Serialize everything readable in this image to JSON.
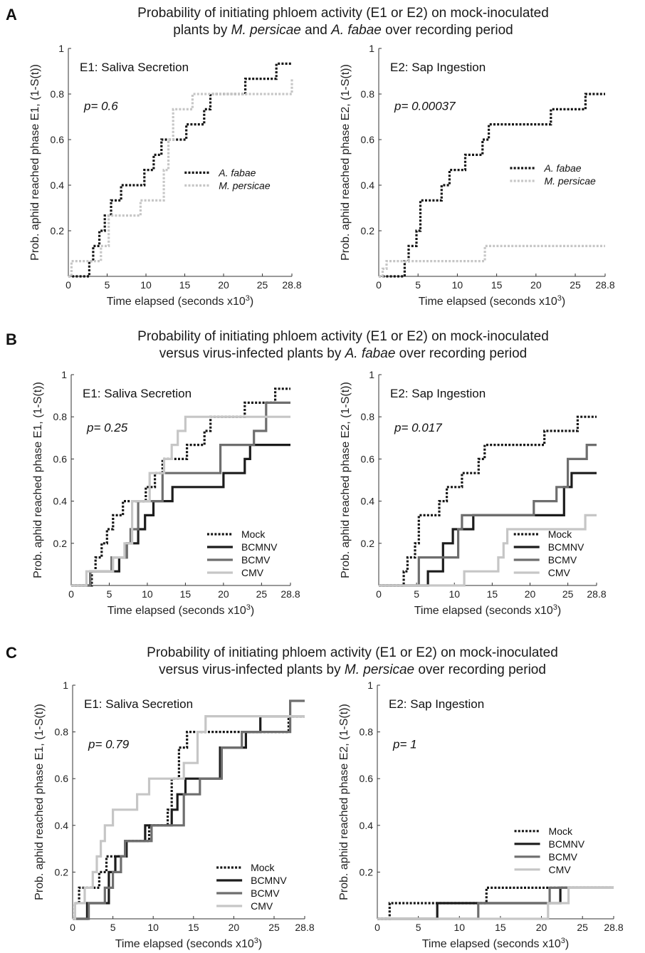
{
  "panels": [
    {
      "letter": "A",
      "title_line1": [
        {
          "t": "Probability of initiating phloem activity (E1 or E2) on mock-inoculated"
        }
      ],
      "title_line2": [
        {
          "t": "plants by "
        },
        {
          "t": "M. persicae",
          "i": true
        },
        {
          "t": " and "
        },
        {
          "t": "A. fabae",
          "i": true
        },
        {
          "t": " over recording period"
        }
      ]
    },
    {
      "letter": "B",
      "title_line1": [
        {
          "t": "Probability of initiating phloem activity (E1 or E2) on mock-inoculated"
        }
      ],
      "title_line2": [
        {
          "t": "versus virus-infected plants by "
        },
        {
          "t": "A. fabae",
          "i": true
        },
        {
          "t": " over recording period"
        }
      ]
    },
    {
      "letter": "C",
      "title_line1": [
        {
          "t": "Probability of initiating phloem activity (E1 or E2) on mock-inoculated"
        }
      ],
      "title_line2": [
        {
          "t": "versus virus-infected plants by "
        },
        {
          "t": "M. persicae",
          "i": true
        },
        {
          "t": " over recording period"
        }
      ]
    }
  ],
  "colors": {
    "mock": "#151515",
    "bcmnv": "#1c1c1c",
    "bcmv": "#6e6e6e",
    "cmv": "#c6c6c6",
    "mpersicae": "#c6c6c6",
    "afabae": "#151515"
  },
  "chart_data": [
    {
      "id": "A-E1",
      "type": "line",
      "step": true,
      "inner_title": "E1: Saliva Secretion",
      "pvalue": "p= 0.6",
      "xlabel": "Time elapsed (seconds x10",
      "xlabel_sup": "3",
      "xlabel_end": ")",
      "ylabel": "Prob. aphid reached phase E1, (1-S(t))",
      "xlim": [
        0,
        28.8
      ],
      "ylim": [
        0,
        1
      ],
      "xticks": [
        "0",
        "5",
        "10",
        "15",
        "20",
        "25",
        "28.8"
      ],
      "yticks": [
        "0.2",
        "0.4",
        "0.6",
        "0.8",
        "1"
      ],
      "legend": "middle-right",
      "series": [
        {
          "name": "A. fabae",
          "key": "afabae",
          "style": "dotted",
          "italic": true,
          "x": [
            2.2,
            2.7,
            3.2,
            4.0,
            4.7,
            5.5,
            6.8,
            9.8,
            11.0,
            12.0,
            15.2,
            17.5,
            18.3,
            22.8,
            26.8,
            28.8
          ],
          "y": [
            0,
            0.067,
            0.133,
            0.2,
            0.267,
            0.333,
            0.4,
            0.467,
            0.533,
            0.6,
            0.667,
            0.733,
            0.8,
            0.867,
            0.933,
            0.933
          ]
        },
        {
          "name": "M. persicae",
          "key": "mpersicae",
          "style": "dotted",
          "italic": true,
          "x": [
            0.4,
            4.2,
            5.2,
            9.3,
            12.3,
            12.9,
            13.5,
            16.0,
            28.8
          ],
          "y": [
            0.067,
            0.133,
            0.267,
            0.333,
            0.467,
            0.6,
            0.733,
            0.8,
            0.867
          ]
        }
      ]
    },
    {
      "id": "A-E2",
      "type": "line",
      "step": true,
      "inner_title": "E2: Sap Ingestion",
      "pvalue": "p= 0.00037",
      "xlabel": "Time elapsed (seconds x10",
      "xlabel_sup": "3",
      "xlabel_end": ")",
      "ylabel": "Prob. aphid reached phase E2, (1-S(t))",
      "xlim": [
        0,
        28.8
      ],
      "ylim": [
        0,
        1
      ],
      "xticks": [
        "0",
        "5",
        "10",
        "15",
        "20",
        "25",
        "28.8"
      ],
      "yticks": [
        "0.2",
        "0.4",
        "0.6",
        "0.8",
        "1"
      ],
      "legend": "top-right",
      "series": [
        {
          "name": "A. fabae",
          "key": "afabae",
          "style": "dotted",
          "italic": true,
          "x": [
            2.8,
            3.3,
            3.8,
            4.8,
            5.3,
            8.0,
            9.0,
            11.0,
            13.2,
            14.0,
            16.0,
            21.9,
            26.3,
            28.8
          ],
          "y": [
            0,
            0.067,
            0.133,
            0.2,
            0.333,
            0.4,
            0.467,
            0.533,
            0.6,
            0.667,
            0.667,
            0.733,
            0.8,
            0.8
          ]
        },
        {
          "name": "M. persicae",
          "key": "mpersicae",
          "style": "dotted",
          "italic": true,
          "x": [
            0.5,
            1.0,
            13.5,
            28.8
          ],
          "y": [
            0.033,
            0.067,
            0.133,
            0.133
          ]
        }
      ]
    },
    {
      "id": "B-E1",
      "type": "line",
      "step": true,
      "inner_title": "E1: Saliva Secretion",
      "pvalue": "p= 0.25",
      "xlabel": "Time elapsed (seconds x10",
      "xlabel_sup": "3",
      "xlabel_end": ")",
      "ylabel": "Prob. aphid reached phase E1, (1-S(t))",
      "xlim": [
        0,
        28.8
      ],
      "ylim": [
        0,
        1
      ],
      "xticks": [
        "0",
        "5",
        "10",
        "15",
        "20",
        "25",
        "28.8"
      ],
      "yticks": [
        "0.2",
        "0.4",
        "0.6",
        "0.8",
        "1"
      ],
      "legend": "bottom-right",
      "series": [
        {
          "name": "Mock",
          "key": "mock",
          "style": "dotted",
          "x": [
            2.2,
            2.7,
            3.2,
            4.0,
            4.7,
            5.5,
            6.8,
            9.8,
            11.0,
            12.0,
            15.2,
            17.5,
            18.3,
            22.8,
            26.8,
            28.8
          ],
          "y": [
            0,
            0.067,
            0.133,
            0.2,
            0.267,
            0.333,
            0.4,
            0.467,
            0.533,
            0.6,
            0.667,
            0.733,
            0.8,
            0.867,
            0.933,
            0.933
          ]
        },
        {
          "name": "BCMNV",
          "key": "bcmnv",
          "style": "solid",
          "x": [
            2.5,
            3.5,
            6.3,
            7.3,
            8.8,
            9.7,
            10.8,
            13.3,
            20.0,
            22.8,
            23.5,
            28.8
          ],
          "y": [
            0.067,
            0.067,
            0.133,
            0.2,
            0.267,
            0.333,
            0.4,
            0.467,
            0.533,
            0.6,
            0.667,
            0.667
          ]
        },
        {
          "name": "BCMV",
          "key": "bcmv",
          "style": "solid",
          "x": [
            2.5,
            5.3,
            7.3,
            7.8,
            8.8,
            12.0,
            19.6,
            24.0,
            25.6,
            28.8
          ],
          "y": [
            0.067,
            0.133,
            0.2,
            0.267,
            0.4,
            0.533,
            0.667,
            0.733,
            0.867,
            0.867
          ]
        },
        {
          "name": "CMV",
          "key": "cmv",
          "style": "solid",
          "x": [
            2.0,
            5.5,
            7.0,
            8.0,
            10.3,
            12.2,
            13.2,
            14.0,
            15.0,
            17.0,
            28.8
          ],
          "y": [
            0.067,
            0.133,
            0.2,
            0.4,
            0.533,
            0.6,
            0.667,
            0.733,
            0.8,
            0.8,
            0.8
          ]
        }
      ]
    },
    {
      "id": "B-E2",
      "type": "line",
      "step": true,
      "inner_title": "E2: Sap Ingestion",
      "pvalue": "p= 0.017",
      "xlabel": "Time elapsed (seconds x10",
      "xlabel_sup": "3",
      "xlabel_end": ")",
      "ylabel": "Prob. aphid reached phase E2, (1-S(t))",
      "xlim": [
        0,
        28.8
      ],
      "ylim": [
        0,
        1
      ],
      "xticks": [
        "0",
        "5",
        "10",
        "15",
        "20",
        "25",
        "28.8"
      ],
      "yticks": [
        "0.2",
        "0.4",
        "0.6",
        "0.8",
        "1"
      ],
      "legend": "bottom-right",
      "series": [
        {
          "name": "Mock",
          "key": "mock",
          "style": "dotted",
          "x": [
            2.8,
            3.3,
            3.8,
            4.8,
            5.3,
            8.0,
            9.0,
            11.0,
            13.2,
            14.0,
            16.0,
            21.9,
            26.3,
            28.8
          ],
          "y": [
            0,
            0.067,
            0.133,
            0.2,
            0.333,
            0.4,
            0.467,
            0.533,
            0.6,
            0.667,
            0.667,
            0.733,
            0.8,
            0.8
          ]
        },
        {
          "name": "BCMNV",
          "key": "bcmnv",
          "style": "solid",
          "x": [
            6.0,
            6.5,
            8.5,
            9.8,
            11.0,
            12.5,
            19.5,
            24.5,
            25.5,
            28.8
          ],
          "y": [
            0,
            0.067,
            0.2,
            0.267,
            0.267,
            0.333,
            0.333,
            0.467,
            0.533,
            0.533
          ]
        },
        {
          "name": "BCMV",
          "key": "bcmv",
          "style": "solid",
          "x": [
            4.8,
            5.3,
            9.3,
            10.5,
            11.0,
            20.5,
            23.5,
            25.0,
            27.5,
            28.8
          ],
          "y": [
            0,
            0.133,
            0.133,
            0.267,
            0.333,
            0.4,
            0.467,
            0.6,
            0.667,
            0.667
          ]
        },
        {
          "name": "CMV",
          "key": "cmv",
          "style": "solid",
          "x": [
            11.3,
            15.8,
            16.5,
            17.0,
            27.3,
            28.8
          ],
          "y": [
            0.067,
            0.133,
            0.2,
            0.267,
            0.333,
            0.333
          ]
        }
      ]
    },
    {
      "id": "C-E1",
      "type": "line",
      "step": true,
      "inner_title": "E1: Saliva Secretion",
      "pvalue": "p= 0.79",
      "xlabel": "Time elapsed (seconds x10",
      "xlabel_sup": "3",
      "xlabel_end": ")",
      "ylabel": "Prob. aphid reached phase E1, (1-S(t))",
      "xlim": [
        0,
        28.8
      ],
      "ylim": [
        0,
        1
      ],
      "xticks": [
        "0",
        "5",
        "10",
        "15",
        "20",
        "25",
        "28.8"
      ],
      "yticks": [
        "0.2",
        "0.4",
        "0.6",
        "0.8",
        "1"
      ],
      "legend": "bottom-right",
      "series": [
        {
          "name": "Mock",
          "key": "mock",
          "style": "dotted",
          "x": [
            0.3,
            0.8,
            3.3,
            4.2,
            6.5,
            9.5,
            11.8,
            12.3,
            13.2,
            14.2,
            17.5,
            26.8,
            28.8
          ],
          "y": [
            0.067,
            0.133,
            0.2,
            0.267,
            0.333,
            0.4,
            0.467,
            0.6,
            0.733,
            0.8,
            0.8,
            0.867,
            0.867
          ]
        },
        {
          "name": "BCMNV",
          "key": "bcmnv",
          "style": "solid",
          "x": [
            1.3,
            1.8,
            4.5,
            5.3,
            6.7,
            9.0,
            10.8,
            12.3,
            13.0,
            14.0,
            18.3,
            21.5,
            23.3,
            28.8
          ],
          "y": [
            0,
            0.067,
            0.2,
            0.267,
            0.333,
            0.4,
            0.4,
            0.467,
            0.533,
            0.6,
            0.733,
            0.8,
            0.867,
            0.867
          ]
        },
        {
          "name": "BCMV",
          "key": "bcmv",
          "style": "solid",
          "x": [
            1.3,
            2.0,
            4.0,
            5.0,
            6.0,
            6.5,
            9.8,
            13.8,
            15.8,
            18.5,
            21.0,
            27.0,
            28.8
          ],
          "y": [
            0,
            0.067,
            0.133,
            0.2,
            0.267,
            0.333,
            0.4,
            0.533,
            0.6,
            0.733,
            0.8,
            0.933,
            0.933
          ]
        },
        {
          "name": "CMV",
          "key": "cmv",
          "style": "solid",
          "x": [
            0.3,
            1.5,
            2.5,
            3.0,
            3.5,
            4.0,
            5.0,
            8.0,
            9.5,
            13.8,
            15.5,
            16.5,
            28.8
          ],
          "y": [
            0.067,
            0.133,
            0.2,
            0.267,
            0.333,
            0.4,
            0.467,
            0.533,
            0.6,
            0.667,
            0.8,
            0.867,
            0.867
          ]
        }
      ]
    },
    {
      "id": "C-E2",
      "type": "line",
      "step": true,
      "inner_title": "E2: Sap Ingestion",
      "pvalue": "p= 1",
      "xlabel": "Time elapsed (seconds x10",
      "xlabel_sup": "3",
      "xlabel_end": ")",
      "ylabel": "Prob. aphid reached phase E2, (1-S(t))",
      "xlim": [
        0,
        28.8
      ],
      "ylim": [
        0,
        1
      ],
      "xticks": [
        "0",
        "5",
        "10",
        "15",
        "20",
        "25",
        "28.8"
      ],
      "yticks": [
        "0.2",
        "0.4",
        "0.6",
        "0.8",
        "1"
      ],
      "legend": "middle-right",
      "series": [
        {
          "name": "Mock",
          "key": "mock",
          "style": "dotted",
          "x": [
            0.7,
            1.5,
            13.3,
            28.8
          ],
          "y": [
            0,
            0.067,
            0.133,
            0.133
          ]
        },
        {
          "name": "BCMNV",
          "key": "bcmnv",
          "style": "solid",
          "x": [
            7.3,
            22.3,
            28.8
          ],
          "y": [
            0.067,
            0.133,
            0.133
          ]
        },
        {
          "name": "BCMV",
          "key": "bcmv",
          "style": "solid",
          "x": [
            12.3,
            21.0,
            28.8
          ],
          "y": [
            0.067,
            0.133,
            0.133
          ]
        },
        {
          "name": "CMV",
          "key": "cmv",
          "style": "solid",
          "x": [
            20.8,
            23.3,
            28.8
          ],
          "y": [
            0.067,
            0.133,
            0.133
          ]
        }
      ]
    }
  ]
}
